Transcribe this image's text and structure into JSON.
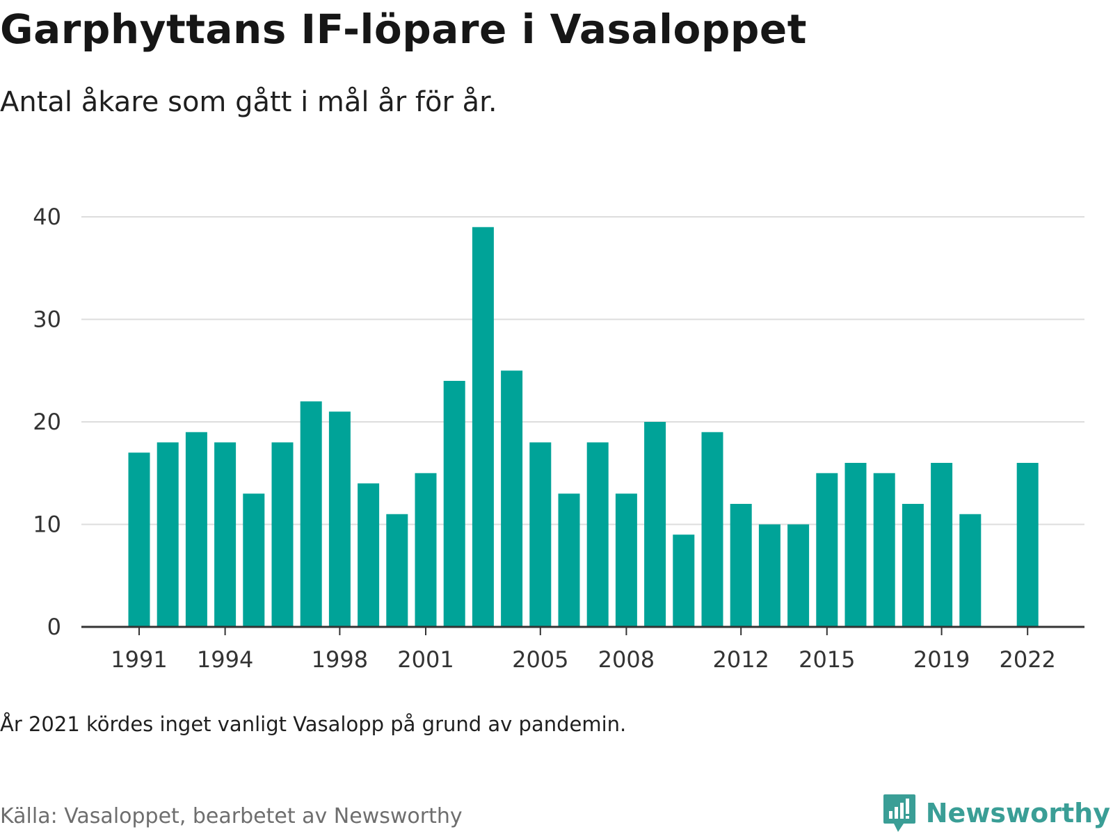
{
  "title": "Garphyttans IF-löpare i Vasaloppet",
  "subtitle": "Antal åkare som gått i mål år för år.",
  "note": "År 2021 kördes inget vanligt Vasalopp på grund av pandemin.",
  "source": "Källa: Vasaloppet, bearbetet av Newsworthy",
  "brand": {
    "name": "Newsworthy",
    "icon": "newsworthy-logo-icon",
    "color": "#3a9e96"
  },
  "colors": {
    "bar": "#00a398",
    "grid": "#dddddd",
    "axis": "#333333",
    "tick_text": "#333333"
  },
  "chart_data": {
    "type": "bar",
    "title": "Garphyttans IF-löpare i Vasaloppet",
    "xlabel": "",
    "ylabel": "",
    "x": [
      1991,
      1992,
      1993,
      1994,
      1995,
      1996,
      1997,
      1998,
      1999,
      2000,
      2001,
      2002,
      2003,
      2004,
      2005,
      2006,
      2007,
      2008,
      2009,
      2010,
      2011,
      2012,
      2013,
      2014,
      2015,
      2016,
      2017,
      2018,
      2019,
      2020,
      2021,
      2022
    ],
    "values": [
      17,
      18,
      19,
      18,
      13,
      18,
      22,
      21,
      14,
      11,
      15,
      24,
      39,
      25,
      18,
      13,
      18,
      13,
      20,
      9,
      19,
      12,
      10,
      10,
      15,
      16,
      15,
      12,
      16,
      11,
      null,
      16
    ],
    "x_tick_labels": [
      "1991",
      "1994",
      "1998",
      "2001",
      "2005",
      "2008",
      "2012",
      "2015",
      "2019",
      "2022"
    ],
    "ylim": [
      0,
      40
    ],
    "y_ticks": [
      0,
      10,
      20,
      30,
      40
    ],
    "grid": true
  }
}
